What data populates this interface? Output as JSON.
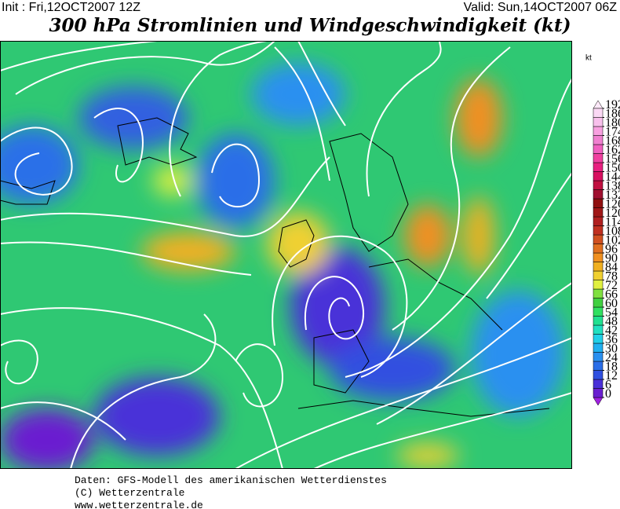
{
  "header": {
    "init": "Init : Fri,12OCT2007 12Z",
    "valid": "Valid: Sun,14OCT2007 06Z",
    "title": "300 hPa Stromlinien und Windgeschwindigkeit (kt)"
  },
  "colorbar": {
    "unit": "kt",
    "ticks": [
      0,
      6,
      12,
      18,
      24,
      30,
      36,
      42,
      48,
      54,
      60,
      66,
      72,
      78,
      84,
      90,
      96,
      102,
      108,
      114,
      120,
      126,
      132,
      138,
      144,
      150,
      156,
      162,
      168,
      174,
      180,
      186,
      192
    ],
    "colors": [
      "#9f20e0",
      "#6a1fd0",
      "#4a30d8",
      "#3050e0",
      "#2a6ee8",
      "#2a90f0",
      "#20b0f0",
      "#20d0e8",
      "#20e0c0",
      "#20e090",
      "#30e060",
      "#40d040",
      "#80e040",
      "#e0f040",
      "#f0d030",
      "#f0b020",
      "#f09020",
      "#e07020",
      "#d05020",
      "#c03020",
      "#b02020",
      "#a01818",
      "#901010",
      "#a01030",
      "#c01040",
      "#d81060",
      "#e82080",
      "#f040a0",
      "#f060c0",
      "#f080d0",
      "#f8a0e0",
      "#f8c0ec",
      "#fad8f4",
      "#fde8f8"
    ]
  },
  "footer": {
    "lines": [
      "Daten: GFS-Modell des amerikanischen Wetterdienstes",
      "(C) Wetterzentrale",
      "www.wetterzentrale.de"
    ]
  }
}
